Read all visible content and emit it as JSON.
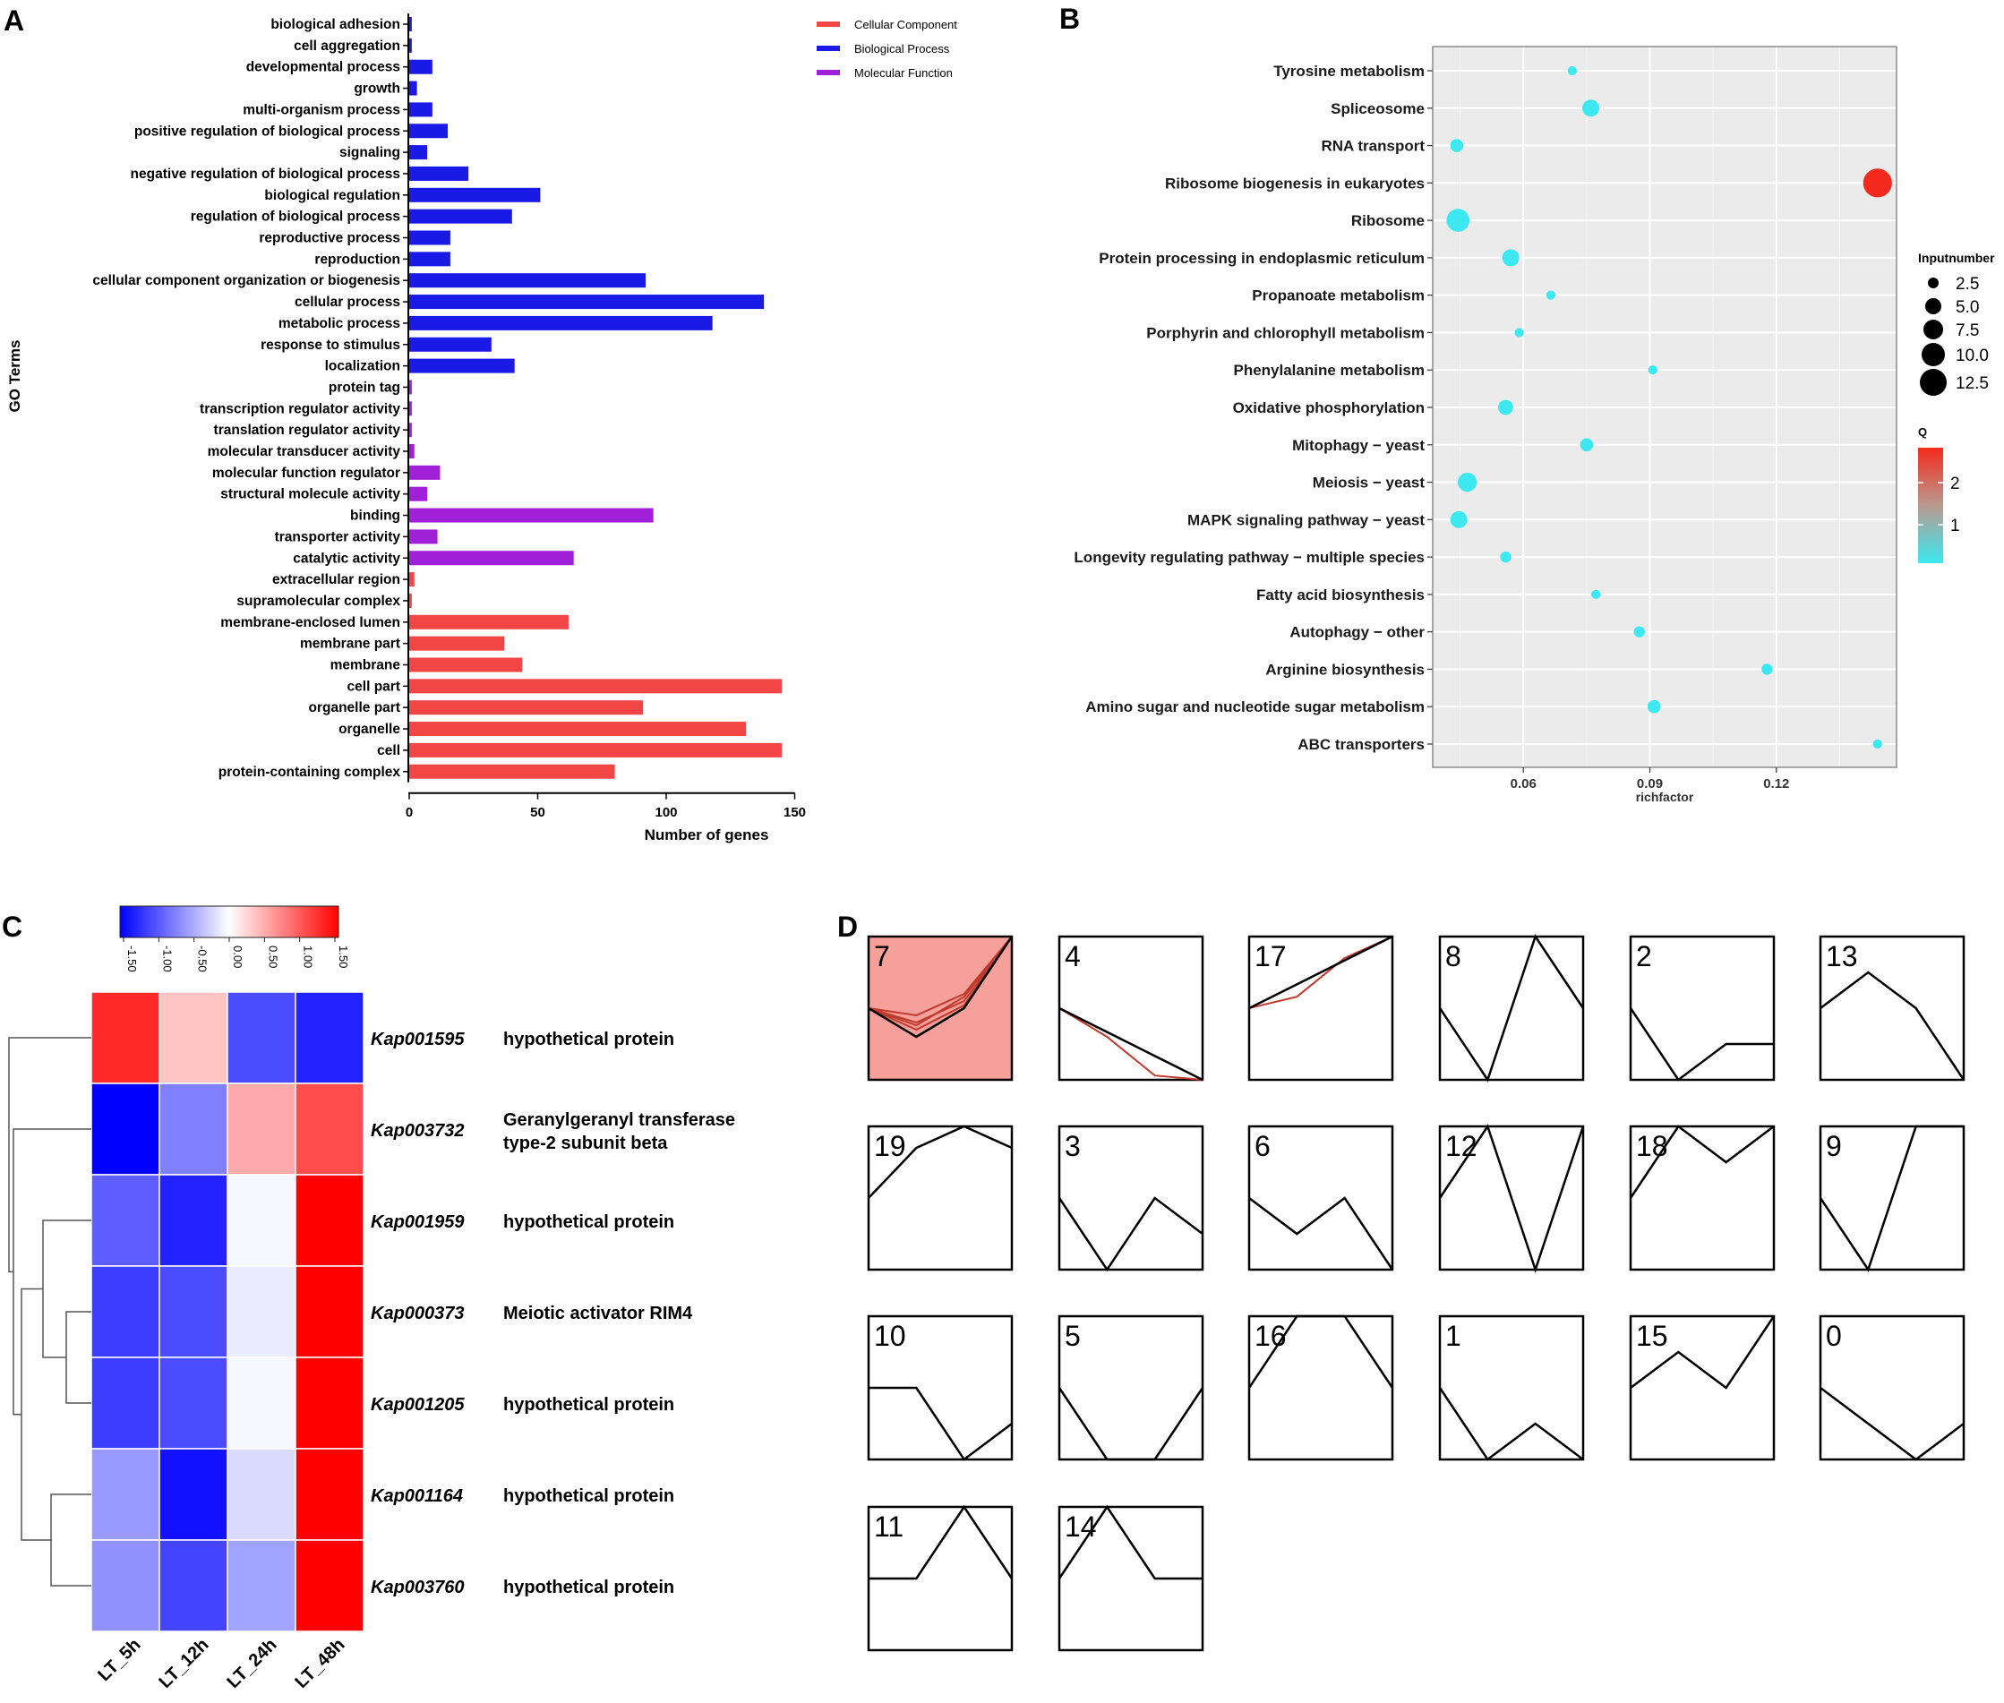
{
  "panels": {
    "a": "A",
    "b": "B",
    "c": "C",
    "d": "D"
  },
  "colors": {
    "cellular": "#f24545",
    "biological": "#1a1ae6",
    "molecular": "#a020d8",
    "cyan": "#3de8f0",
    "red": "#f52a1e",
    "heat_neg": "#0000ff",
    "heat_pos": "#ff0000",
    "cluster_line": "#000000",
    "cluster_member": "#c0392b",
    "cluster_highlight": "#f5a09a"
  },
  "chart_data": [
    {
      "type": "bar",
      "panel": "A",
      "orientation": "horizontal",
      "ylabel": "GO Terms",
      "xlabel": "Number of genes",
      "xlim": [
        0,
        150
      ],
      "xticks": [
        "0",
        "50",
        "100",
        "150"
      ],
      "legend": [
        {
          "name": "Cellular Component",
          "color": "#f24545"
        },
        {
          "name": "Biological Process",
          "color": "#1a1ae6"
        },
        {
          "name": "Molecular Function",
          "color": "#a020d8"
        }
      ],
      "legend_position": "top-right",
      "terms": [
        {
          "label": "biological adhesion",
          "value": 1,
          "cat": "biological"
        },
        {
          "label": "cell aggregation",
          "value": 1,
          "cat": "biological"
        },
        {
          "label": "developmental process",
          "value": 9,
          "cat": "biological"
        },
        {
          "label": "growth",
          "value": 3,
          "cat": "biological"
        },
        {
          "label": "multi-organism process",
          "value": 9,
          "cat": "biological"
        },
        {
          "label": "positive regulation of biological process",
          "value": 15,
          "cat": "biological"
        },
        {
          "label": "signaling",
          "value": 7,
          "cat": "biological"
        },
        {
          "label": "negative regulation of biological process",
          "value": 23,
          "cat": "biological"
        },
        {
          "label": "biological regulation",
          "value": 51,
          "cat": "biological"
        },
        {
          "label": "regulation of biological process",
          "value": 40,
          "cat": "biological"
        },
        {
          "label": "reproductive process",
          "value": 16,
          "cat": "biological"
        },
        {
          "label": "reproduction",
          "value": 16,
          "cat": "biological"
        },
        {
          "label": "cellular component organization or biogenesis",
          "value": 92,
          "cat": "biological"
        },
        {
          "label": "cellular process",
          "value": 138,
          "cat": "biological"
        },
        {
          "label": "metabolic process",
          "value": 118,
          "cat": "biological"
        },
        {
          "label": "response to stimulus",
          "value": 32,
          "cat": "biological"
        },
        {
          "label": "localization",
          "value": 41,
          "cat": "biological"
        },
        {
          "label": "protein tag",
          "value": 1,
          "cat": "molecular"
        },
        {
          "label": "transcription regulator activity",
          "value": 1,
          "cat": "molecular"
        },
        {
          "label": "translation regulator activity",
          "value": 1,
          "cat": "molecular"
        },
        {
          "label": "molecular transducer activity",
          "value": 2,
          "cat": "molecular"
        },
        {
          "label": "molecular function regulator",
          "value": 12,
          "cat": "molecular"
        },
        {
          "label": "structural molecule activity",
          "value": 7,
          "cat": "molecular"
        },
        {
          "label": "binding",
          "value": 95,
          "cat": "molecular"
        },
        {
          "label": "transporter activity",
          "value": 11,
          "cat": "molecular"
        },
        {
          "label": "catalytic activity",
          "value": 64,
          "cat": "molecular"
        },
        {
          "label": "extracellular region",
          "value": 2,
          "cat": "cellular"
        },
        {
          "label": "supramolecular complex",
          "value": 1,
          "cat": "cellular"
        },
        {
          "label": "membrane-enclosed lumen",
          "value": 62,
          "cat": "cellular"
        },
        {
          "label": "membrane part",
          "value": 37,
          "cat": "cellular"
        },
        {
          "label": "membrane",
          "value": 44,
          "cat": "cellular"
        },
        {
          "label": "cell part",
          "value": 145,
          "cat": "cellular"
        },
        {
          "label": "organelle part",
          "value": 91,
          "cat": "cellular"
        },
        {
          "label": "organelle",
          "value": 131,
          "cat": "cellular"
        },
        {
          "label": "cell",
          "value": 145,
          "cat": "cellular"
        },
        {
          "label": "protein-containing complex",
          "value": 80,
          "cat": "cellular"
        }
      ]
    },
    {
      "type": "scatter",
      "panel": "B",
      "xlabel": "richfactor",
      "xlim": [
        0.0385,
        0.1485
      ],
      "xticks": [
        "0.06",
        "0.09",
        "0.12"
      ],
      "size_legend_title": "Inputnumber",
      "size_legend": [
        "2.5",
        "5.0",
        "7.5",
        "10.0",
        "12.5"
      ],
      "color_legend_title": "Q",
      "color_legend_ticks": [
        "2",
        "1"
      ],
      "points": [
        {
          "label": "Tyrosine metabolism",
          "x": 0.0716,
          "size": 1,
          "q": 0
        },
        {
          "label": "Spliceosome",
          "x": 0.076,
          "size": 5,
          "q": 0
        },
        {
          "label": "RNA transport",
          "x": 0.0442,
          "size": 3,
          "q": 0
        },
        {
          "label": "Ribosome biogenesis in eukaryotes",
          "x": 0.144,
          "size": 11,
          "q": 2.6
        },
        {
          "label": "Ribosome",
          "x": 0.0445,
          "size": 8,
          "q": 0
        },
        {
          "label": "Protein processing in endoplasmic reticulum",
          "x": 0.057,
          "size": 5,
          "q": 0
        },
        {
          "label": "Propanoate metabolism",
          "x": 0.0665,
          "size": 1,
          "q": 0
        },
        {
          "label": "Porphyrin and chlorophyll metabolism",
          "x": 0.059,
          "size": 1,
          "q": 0
        },
        {
          "label": "Phenylalanine metabolism",
          "x": 0.0907,
          "size": 1,
          "q": 0
        },
        {
          "label": "Oxidative phosphorylation",
          "x": 0.0558,
          "size": 4,
          "q": 0
        },
        {
          "label": "Mitophagy − yeast",
          "x": 0.075,
          "size": 3,
          "q": 0
        },
        {
          "label": "Meiosis − yeast",
          "x": 0.0467,
          "size": 6,
          "q": 0
        },
        {
          "label": "MAPK signaling pathway − yeast",
          "x": 0.0447,
          "size": 5,
          "q": 0
        },
        {
          "label": "Longevity regulating pathway − multiple species",
          "x": 0.0558,
          "size": 2,
          "q": 0
        },
        {
          "label": "Fatty acid biosynthesis",
          "x": 0.0772,
          "size": 1,
          "q": 0
        },
        {
          "label": "Autophagy − other",
          "x": 0.0875,
          "size": 2,
          "q": 0
        },
        {
          "label": "Arginine biosynthesis",
          "x": 0.1178,
          "size": 2,
          "q": 0
        },
        {
          "label": "Amino sugar and nucleotide sugar metabolism",
          "x": 0.091,
          "size": 3,
          "q": 0
        },
        {
          "label": "ABC transporters",
          "x": 0.144,
          "size": 1,
          "q": 0
        }
      ]
    },
    {
      "type": "heatmap",
      "panel": "C",
      "colorbar_ticks": [
        "-1.50",
        "-1.00",
        "-0.50",
        "0.00",
        "0.50",
        "1.00",
        "1.50"
      ],
      "columns": [
        "LT_5h",
        "LT_12h",
        "LT_24h",
        "LT_48h"
      ],
      "rows": [
        {
          "id": "Kap001595",
          "desc": "hypothetical protein",
          "values": [
            1.25,
            0.35,
            -1.05,
            -1.3
          ]
        },
        {
          "id": "Kap003732",
          "desc": "Geranylgeranyl transferase",
          "desc2": "type-2 subunit beta",
          "values": [
            -1.5,
            -0.75,
            0.5,
            1.05
          ]
        },
        {
          "id": "Kap001959",
          "desc": "hypothetical protein",
          "values": [
            -0.95,
            -1.3,
            -0.05,
            1.5
          ]
        },
        {
          "id": "Kap000373",
          "desc": "Meiotic activator RIM4",
          "values": [
            -1.15,
            -1.05,
            -0.12,
            1.5
          ]
        },
        {
          "id": "Kap001205",
          "desc": "hypothetical protein",
          "values": [
            -1.15,
            -1.05,
            -0.05,
            1.5
          ]
        },
        {
          "id": "Kap001164",
          "desc": "hypothetical protein",
          "values": [
            -0.6,
            -1.4,
            -0.22,
            1.5
          ]
        },
        {
          "id": "Kap003760",
          "desc": "hypothetical protein",
          "values": [
            -0.65,
            -1.1,
            -0.55,
            1.55
          ]
        }
      ]
    },
    {
      "type": "line",
      "panel": "D",
      "description": "STEM temporal expression profiles",
      "ylim": [
        0,
        1
      ],
      "profiles": [
        {
          "label": "7",
          "values": [
            0.5,
            0.3,
            0.5,
            1.0
          ],
          "highlight": true,
          "members": [
            [
              0.5,
              0.45,
              0.6,
              1.0
            ],
            [
              0.5,
              0.4,
              0.55,
              1.0
            ],
            [
              0.5,
              0.38,
              0.58,
              1.0
            ],
            [
              0.5,
              0.35,
              0.52,
              1.0
            ]
          ]
        },
        {
          "label": "4",
          "values": [
            0.5,
            0.3333,
            0.1667,
            0.0
          ],
          "members": [
            [
              0.5,
              0.3,
              0.03,
              0.0
            ]
          ]
        },
        {
          "label": "17",
          "values": [
            0.5,
            0.6667,
            0.8333,
            1.0
          ],
          "members": [
            [
              0.5,
              0.58,
              0.85,
              1.0
            ]
          ]
        },
        {
          "label": "8",
          "values": [
            0.5,
            0.0,
            1.0,
            0.5
          ]
        },
        {
          "label": "2",
          "values": [
            0.5,
            0.0,
            0.25,
            0.25
          ]
        },
        {
          "label": "13",
          "values": [
            0.5,
            0.75,
            0.5,
            0.0
          ]
        },
        {
          "label": "19",
          "values": [
            0.5,
            0.85,
            1.0,
            0.85
          ]
        },
        {
          "label": "3",
          "values": [
            0.5,
            0.0,
            0.5,
            0.25
          ]
        },
        {
          "label": "6",
          "values": [
            0.5,
            0.25,
            0.5,
            0.0
          ]
        },
        {
          "label": "12",
          "values": [
            0.5,
            1.0,
            0.0,
            1.0
          ]
        },
        {
          "label": "18",
          "values": [
            0.5,
            1.0,
            0.75,
            1.0
          ]
        },
        {
          "label": "9",
          "values": [
            0.5,
            0.0,
            1.0,
            1.0
          ]
        },
        {
          "label": "10",
          "values": [
            0.5,
            0.5,
            0.0,
            0.25
          ]
        },
        {
          "label": "5",
          "values": [
            0.5,
            0.0,
            0.0,
            0.5
          ]
        },
        {
          "label": "16",
          "values": [
            0.5,
            1.0,
            1.0,
            0.5
          ]
        },
        {
          "label": "1",
          "values": [
            0.5,
            0.0,
            0.25,
            0.0
          ]
        },
        {
          "label": "15",
          "values": [
            0.5,
            0.75,
            0.5,
            1.0
          ]
        },
        {
          "label": "0",
          "values": [
            0.5,
            0.25,
            0.0,
            0.25
          ]
        },
        {
          "label": "11",
          "values": [
            0.5,
            0.5,
            1.0,
            0.5
          ]
        },
        {
          "label": "14",
          "values": [
            0.5,
            1.0,
            0.5,
            0.5
          ]
        }
      ]
    }
  ]
}
